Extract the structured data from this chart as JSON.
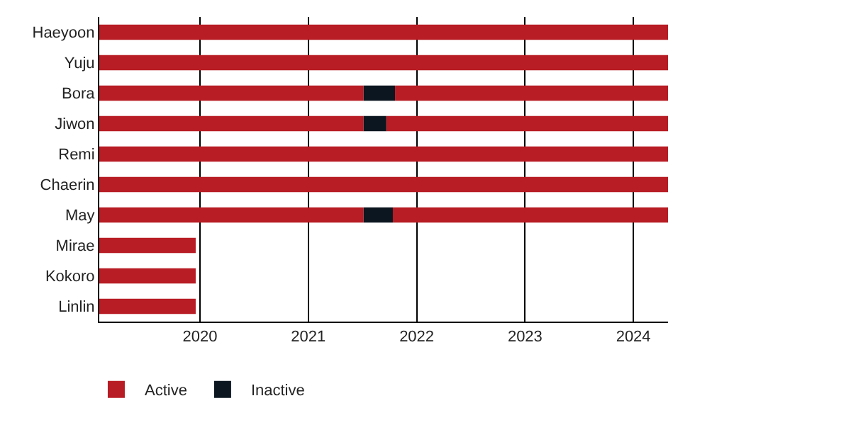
{
  "chart_data": {
    "type": "bar",
    "orientation": "horizontal",
    "categories": [
      "Haeyoon",
      "Yuju",
      "Bora",
      "Jiwon",
      "Remi",
      "Chaerin",
      "May",
      "Mirae",
      "Kokoro",
      "Linlin"
    ],
    "series": [
      {
        "name": "Active",
        "color": "#b81c24",
        "base": [
          2019.07,
          2019.07,
          2019.07,
          2019.07,
          2019.07,
          2019.07,
          2019.07,
          2019.07,
          2019.07,
          2019.07
        ],
        "values": [
          5.25,
          5.25,
          2.44,
          2.44,
          5.25,
          5.25,
          2.44,
          0.89,
          0.89,
          0.89
        ]
      },
      {
        "name": "Inactive",
        "color": "#0c1620",
        "base": [
          null,
          null,
          2021.51,
          2021.51,
          null,
          null,
          2021.51,
          null,
          null,
          null
        ],
        "values": [
          null,
          null,
          0.29,
          0.21,
          null,
          null,
          0.27,
          null,
          null,
          null
        ]
      },
      {
        "color": "#b81c24",
        "base": [
          null,
          null,
          2021.8,
          2021.72,
          null,
          null,
          2021.78,
          null,
          null,
          null
        ],
        "values": [
          null,
          null,
          2.52,
          2.6,
          null,
          null,
          2.54,
          null,
          null,
          null
        ]
      }
    ],
    "xlim": [
      2019.07,
      2024.32
    ],
    "xticks": [
      2020,
      2021,
      2022,
      2023,
      2024
    ],
    "grid": "x",
    "legend": "bottom left"
  }
}
